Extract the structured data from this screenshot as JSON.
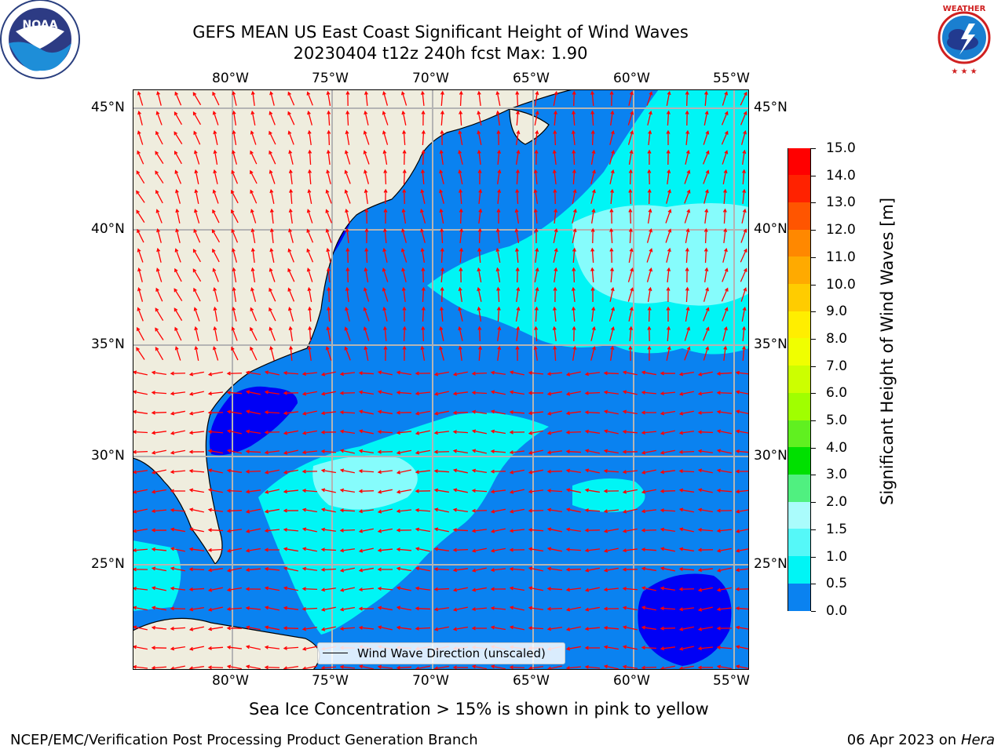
{
  "header": {
    "title_line1": "GEFS MEAN US East Coast Significant Height of Wind Waves",
    "title_line2": "20230404 t12z 240h fcst   Max: 1.90",
    "left_logo_text": "NOAA",
    "right_logo_text": "NATIONAL WEATHER SERVICE"
  },
  "map": {
    "lon_labels": [
      "80°W",
      "75°W",
      "70°W",
      "65°W",
      "60°W",
      "55°W"
    ],
    "lat_labels": [
      "45°N",
      "40°N",
      "35°N",
      "30°N",
      "25°N"
    ],
    "legend_label": "Wind Wave Direction (unscaled)",
    "colors": {
      "land": "#efedde",
      "deep_blue": "#0000f5",
      "mid_blue": "#0a82f0",
      "cyan": "#00f5f5",
      "light_cyan": "#86fcfc",
      "arrow": "#ff0000",
      "grid": "#b4b4b4"
    }
  },
  "colorbar": {
    "label": "Significant Height of Wind Waves [m]",
    "ticks": [
      "15.0",
      "14.0",
      "13.0",
      "12.0",
      "11.0",
      "10.0",
      "9.0",
      "8.0",
      "7.0",
      "6.0",
      "5.0",
      "4.0",
      "3.0",
      "2.0",
      "1.5",
      "1.0",
      "0.5",
      "0.0"
    ],
    "colors_top_to_bottom": [
      "#ff0000",
      "#ff2200",
      "#ff5500",
      "#ff8800",
      "#ffaa00",
      "#ffcc00",
      "#ffee00",
      "#f0ff00",
      "#ccff00",
      "#a0ff00",
      "#60f020",
      "#00e000",
      "#50f080",
      "#aafcfc",
      "#55f8f8",
      "#00f5f5",
      "#0a82f0",
      "#0000f5"
    ]
  },
  "footer": {
    "note": "Sea Ice Concentration > 15% is shown in pink to yellow",
    "credit": "NCEP/EMC/Verification Post Processing Product Generation Branch",
    "date": "06 Apr 2023 on",
    "machine": "Hera"
  }
}
